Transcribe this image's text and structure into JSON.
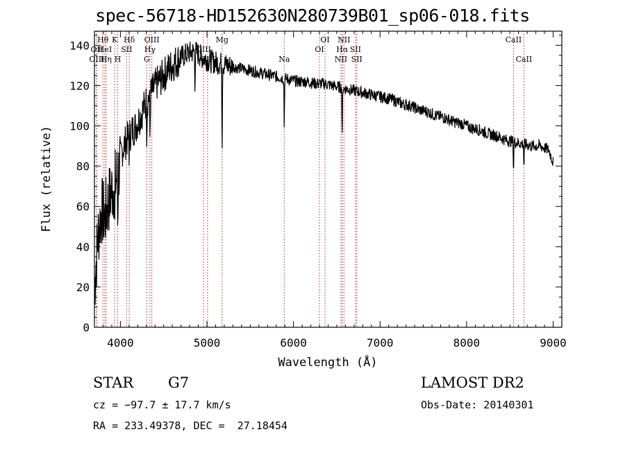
{
  "chart_data": {
    "type": "line",
    "title": "spec-56718-HD152630N280739B01_sp06-018.fits",
    "xlabel": "Wavelength (Å)",
    "ylabel": "Flux (relative)",
    "xlim": [
      3700,
      9100
    ],
    "ylim": [
      0,
      147
    ],
    "xticks": [
      4000,
      5000,
      6000,
      7000,
      8000,
      9000
    ],
    "yticks": [
      0,
      20,
      40,
      60,
      80,
      100,
      120,
      140
    ],
    "line_color": "#000000",
    "marker_color": "#b22222",
    "grid": false,
    "series": [
      {
        "x": [
          3700,
          3740,
          3780,
          3820,
          3860,
          3900,
          3940,
          3980,
          4020,
          4060,
          4100,
          4140,
          4180,
          4220,
          4260,
          4300,
          4340,
          4380,
          4420,
          4480,
          4550,
          4620,
          4700,
          4780,
          4860,
          4950,
          5050,
          5150,
          5250,
          5350,
          5450,
          5550,
          5650,
          5750,
          5850,
          5950,
          6050,
          6150,
          6250,
          6350,
          6450,
          6550,
          6650,
          6750,
          6850,
          6950,
          7050,
          7150,
          7250,
          7350,
          7450,
          7550,
          7650,
          7750,
          7850,
          7950,
          8050,
          8150,
          8250,
          8350,
          8450,
          8550,
          8650,
          8750,
          8850,
          8950,
          9000
        ],
        "y": [
          20,
          45,
          58,
          55,
          62,
          68,
          72,
          78,
          88,
          92,
          95,
          98,
          100,
          104,
          108,
          112,
          115,
          118,
          121,
          124,
          128,
          131,
          134,
          136,
          137,
          134,
          132,
          131,
          130,
          129,
          128,
          127,
          126,
          125,
          124,
          123,
          122,
          122,
          121,
          121,
          120,
          119,
          118,
          117,
          116,
          115,
          114,
          113,
          111,
          110,
          108,
          107,
          105,
          104,
          102,
          101,
          99,
          98,
          96,
          95,
          93,
          92,
          91,
          90,
          90,
          88,
          82
        ]
      }
    ],
    "line_markers": [
      {
        "label": "Hθ",
        "x": 3798,
        "row": 1
      },
      {
        "label": "OII",
        "x": 3727,
        "row": 2
      },
      {
        "label": "HeI",
        "x": 3820,
        "row": 2
      },
      {
        "label": "OIII",
        "x": 3727,
        "row": 3
      },
      {
        "label": "Hη",
        "x": 3835,
        "row": 3
      },
      {
        "label": "K",
        "x": 3934,
        "row": 1
      },
      {
        "label": "SII",
        "x": 4072,
        "row": 2
      },
      {
        "label": "H",
        "x": 3969,
        "row": 3
      },
      {
        "label": "Hδ",
        "x": 4102,
        "row": 1
      },
      {
        "label": "OIII",
        "x": 4363,
        "row": 1
      },
      {
        "label": "Hγ",
        "x": 4341,
        "row": 2
      },
      {
        "label": "G",
        "x": 4305,
        "row": 3
      },
      {
        "label": "OIII",
        "x": 4959,
        "row": 2
      },
      {
        "label": "OIII",
        "x": 5007,
        "row": 3
      },
      {
        "label": "Mg",
        "x": 5175,
        "row": 1
      },
      {
        "label": "Na",
        "x": 5893,
        "row": 3
      },
      {
        "label": "OI",
        "x": 6364,
        "row": 1
      },
      {
        "label": "OI",
        "x": 6300,
        "row": 2
      },
      {
        "label": "NII",
        "x": 6583,
        "row": 1
      },
      {
        "label": "Hα",
        "x": 6563,
        "row": 2
      },
      {
        "label": "NII",
        "x": 6548,
        "row": 3
      },
      {
        "label": "SII",
        "x": 6716,
        "row": 2
      },
      {
        "label": "SII",
        "x": 6731,
        "row": 3
      },
      {
        "label": "CaII",
        "x": 8542,
        "row": 1
      },
      {
        "label": "CaII",
        "x": 8662,
        "row": 3
      }
    ]
  },
  "info": {
    "class": "STAR",
    "subclass": "G7",
    "survey": "LAMOST DR2",
    "cz": "cz = −97.7 ± 17.7 km/s",
    "obs_date": "Obs-Date: 20140301",
    "coords": "RA = 233.49378, DEC =  27.18454"
  }
}
